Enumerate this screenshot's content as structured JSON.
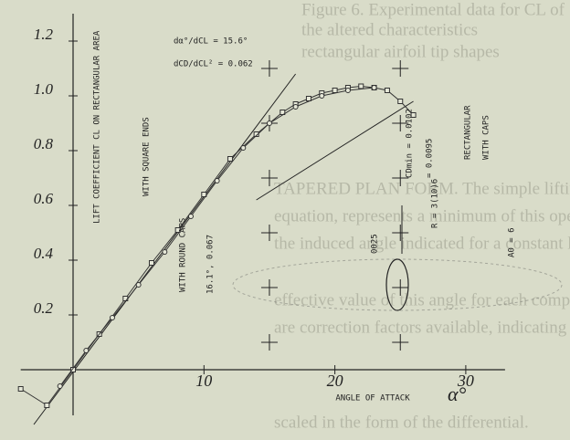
{
  "chart_data": {
    "type": "scatter",
    "xlabel": "ANGLE OF ATTACK",
    "xlabel_symbol": "α°",
    "ylabel": "LIFT COEFFICIENT CL ON RECTANGULAR AREA",
    "xlim": [
      -4,
      33
    ],
    "ylim": [
      -0.1,
      1.3
    ],
    "xticks": [
      10,
      20,
      30
    ],
    "yticks": [
      0.2,
      0.4,
      0.6,
      0.8,
      {
        "value": 1,
        "label": "1.0"
      },
      1.2
    ],
    "grid": "crosses",
    "series": [
      {
        "name": "WITH SQUARE ENDS",
        "marker": "square",
        "color": "#333333",
        "x": [
          -4,
          -2,
          0,
          2,
          4,
          6,
          8,
          10,
          12,
          14,
          16,
          17,
          18,
          19,
          20,
          21,
          22,
          23,
          24,
          25,
          26
        ],
        "values": [
          -0.07,
          -0.13,
          0.0,
          0.13,
          0.26,
          0.39,
          0.51,
          0.64,
          0.77,
          0.86,
          0.94,
          0.97,
          0.99,
          1.01,
          1.02,
          1.03,
          1.035,
          1.03,
          1.02,
          0.98,
          0.93
        ]
      },
      {
        "name": "WITH ROUND CAPS",
        "marker": "circle",
        "color": "#333333",
        "x": [
          -1,
          1,
          3,
          5,
          7,
          9,
          11,
          13,
          15,
          17,
          19,
          21,
          23
        ],
        "values": [
          -0.06,
          0.07,
          0.19,
          0.31,
          0.43,
          0.56,
          0.69,
          0.81,
          0.9,
          0.96,
          1.0,
          1.02,
          1.03
        ]
      }
    ],
    "annotations": [
      "WITH SQUARE ENDS",
      "dα°/dCL = 15.6°",
      "dCD/dCL² = 0.062",
      "WITH ROUND CAPS",
      "16.1°, 0.067",
      "CDmin = 0.0102",
      "= 0.0095",
      "RECTANGULAR",
      "WITH CAPS",
      "R = 3(10)6",
      "0025",
      "A0 = 6"
    ],
    "background_text": [
      "Figure 6. Experimental data for CL of",
      "the altered characteristics",
      "rectangular airfoil tip shapes",
      "TAPERED PLAN FORM. The simple lifting line theory",
      "equation, represents a minimum of this operation of",
      "the induced angle indicated for a constant lift distribution",
      "effective value of this angle for each component, there",
      "are correction factors available, indicating the increment",
      "scaled in the form of the differential."
    ]
  }
}
